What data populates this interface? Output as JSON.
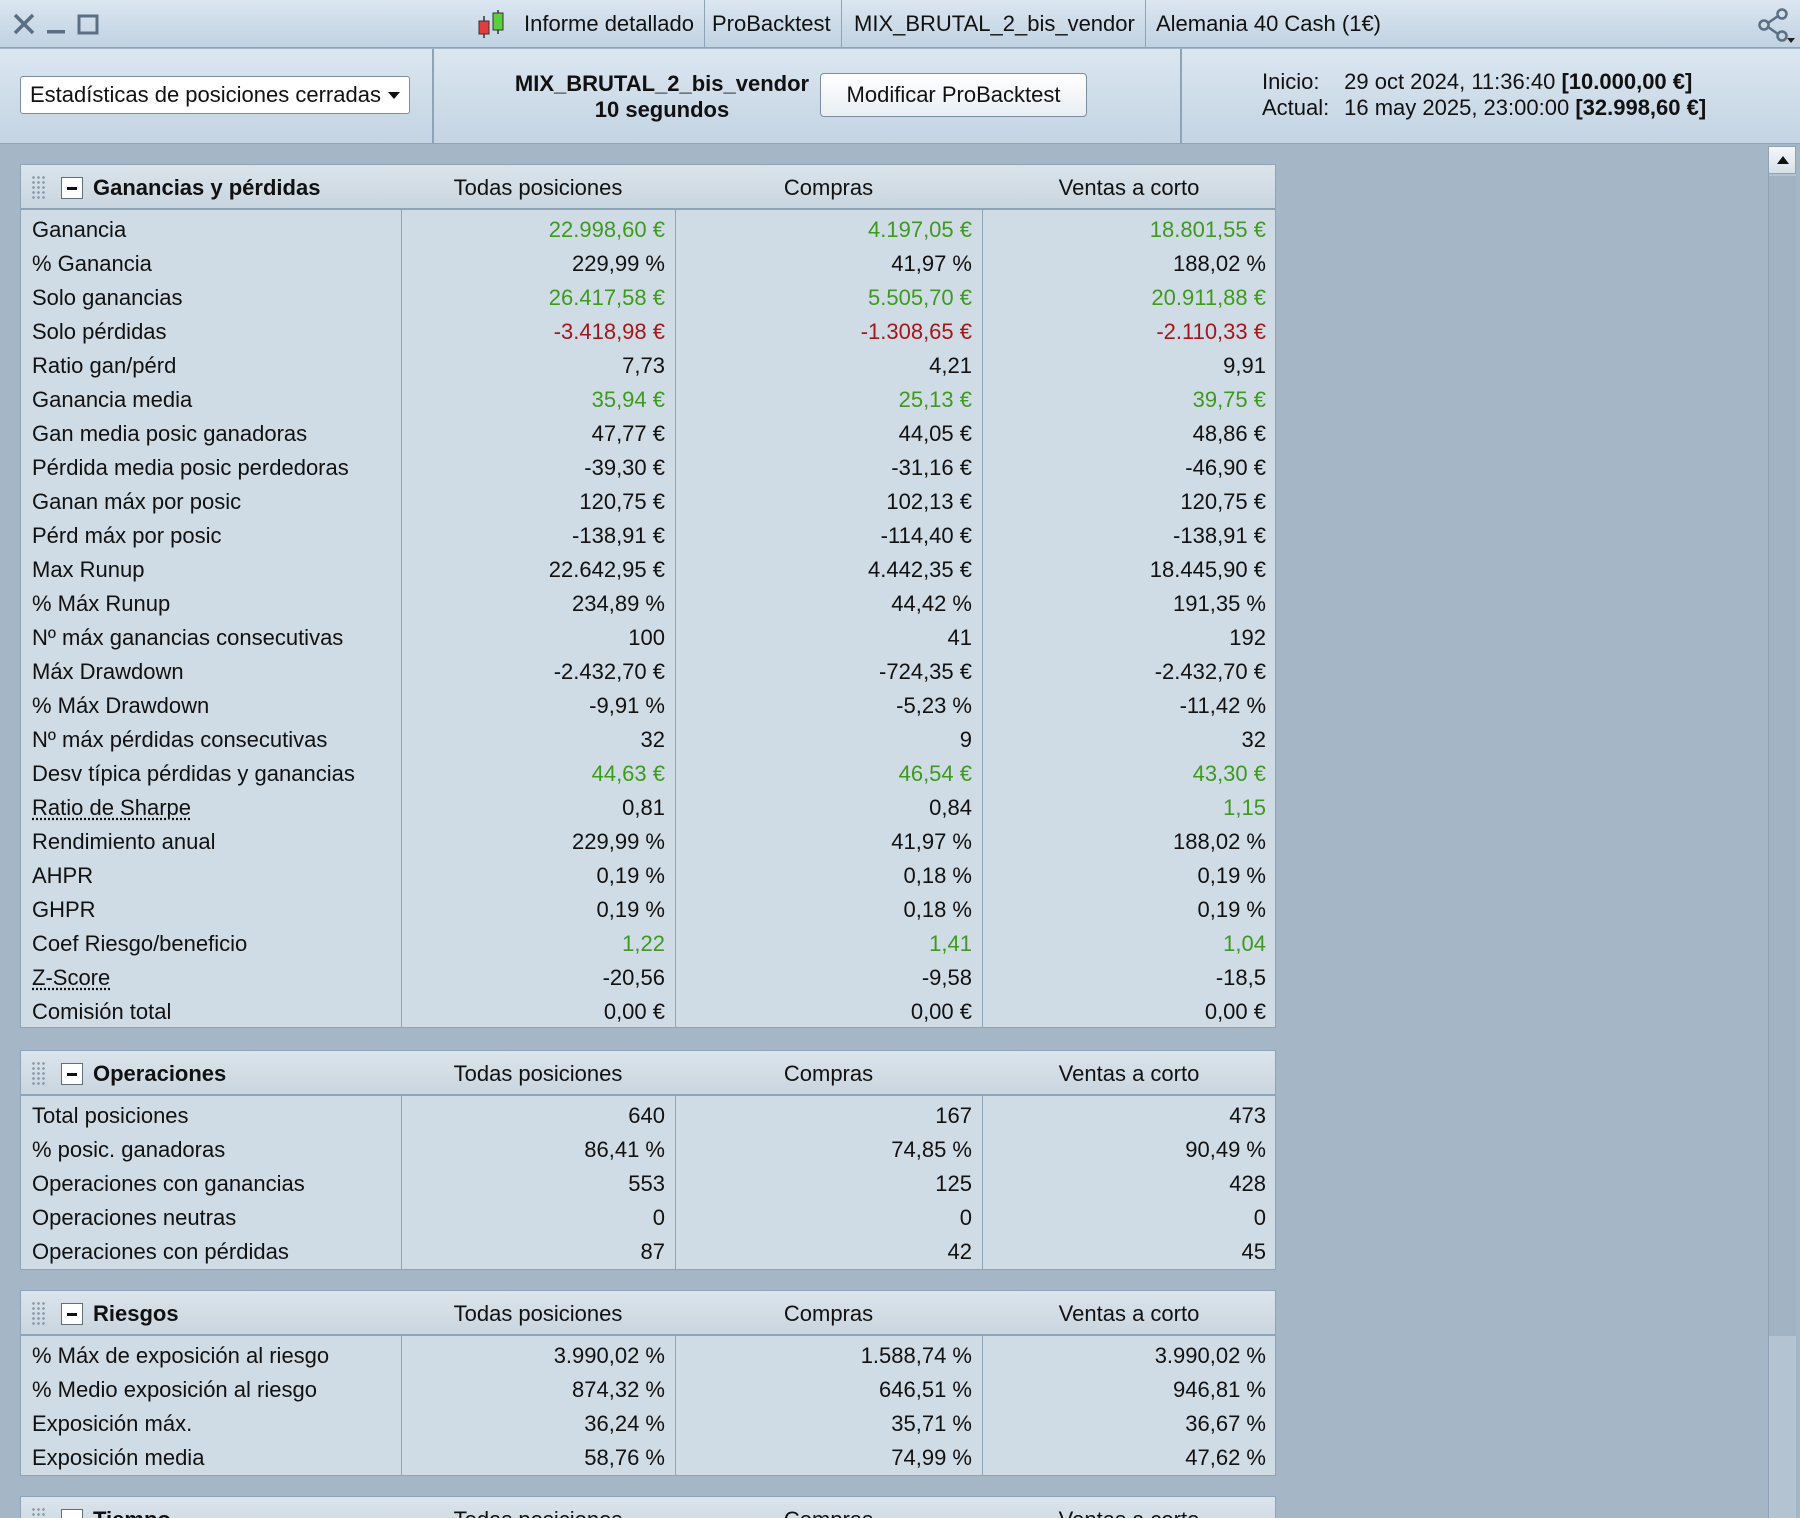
{
  "titlebar": {
    "tabs": [
      "Informe detallado",
      "ProBacktest",
      "MIX_BRUTAL_2_bis_vendor",
      "Alemania 40 Cash (1€)"
    ]
  },
  "header": {
    "stats_select": "Estadísticas de posiciones cerradas",
    "strategy_name": "MIX_BRUTAL_2_bis_vendor",
    "interval": "10 segundos",
    "modify_button": "Modificar ProBacktest",
    "start_label": "Inicio:",
    "start_value": "29 oct 2024, 11:36:40",
    "start_capital": "[10.000,00 €]",
    "current_label": "Actual:",
    "current_value": "16 may 2025, 23:00:00",
    "current_capital": "[32.998,60 €]"
  },
  "columns": [
    "Todas posiciones",
    "Compras",
    "Ventas a corto"
  ],
  "colors": {
    "positive": "#3e9a1f",
    "negative": "#a4161a"
  },
  "sections": {
    "pnl": {
      "title": "Ganancias y pérdidas",
      "rows": [
        {
          "label": "Ganancia",
          "values": [
            "22.998,60 €",
            "4.197,05 €",
            "18.801,55 €"
          ],
          "color": "green"
        },
        {
          "label": "% Ganancia",
          "values": [
            "229,99 %",
            "41,97 %",
            "188,02 %"
          ]
        },
        {
          "label": "Solo ganancias",
          "values": [
            "26.417,58 €",
            "5.505,70 €",
            "20.911,88 €"
          ],
          "color": "green"
        },
        {
          "label": "Solo pérdidas",
          "values": [
            "-3.418,98 €",
            "-1.308,65 €",
            "-2.110,33 €"
          ],
          "color": "red"
        },
        {
          "label": "Ratio gan/pérd",
          "values": [
            "7,73",
            "4,21",
            "9,91"
          ]
        },
        {
          "label": "Ganancia media",
          "values": [
            "35,94 €",
            "25,13 €",
            "39,75 €"
          ],
          "color": "green"
        },
        {
          "label": "Gan media posic ganadoras",
          "values": [
            "47,77 €",
            "44,05 €",
            "48,86 €"
          ]
        },
        {
          "label": "Pérdida media posic perdedoras",
          "values": [
            "-39,30 €",
            "-31,16 €",
            "-46,90 €"
          ]
        },
        {
          "label": "Ganan máx por posic",
          "values": [
            "120,75 €",
            "102,13 €",
            "120,75 €"
          ]
        },
        {
          "label": "Pérd máx por posic",
          "values": [
            "-138,91 €",
            "-114,40 €",
            "-138,91 €"
          ]
        },
        {
          "label": "Max Runup",
          "values": [
            "22.642,95 €",
            "4.442,35 €",
            "18.445,90 €"
          ]
        },
        {
          "label": "% Máx Runup",
          "values": [
            "234,89 %",
            "44,42 %",
            "191,35 %"
          ]
        },
        {
          "label": "Nº máx ganancias consecutivas",
          "values": [
            "100",
            "41",
            "192"
          ]
        },
        {
          "label": "Máx Drawdown",
          "values": [
            "-2.432,70 €",
            "-724,35 €",
            "-2.432,70 €"
          ]
        },
        {
          "label": "% Máx Drawdown",
          "values": [
            "-9,91 %",
            "-5,23 %",
            "-11,42 %"
          ]
        },
        {
          "label": "Nº máx pérdidas consecutivas",
          "values": [
            "32",
            "9",
            "32"
          ]
        },
        {
          "label": "Desv típica pérdidas y ganancias",
          "values": [
            "44,63 €",
            "46,54 €",
            "43,30 €"
          ],
          "color": "green"
        },
        {
          "label": "Ratio de Sharpe",
          "values": [
            "0,81",
            "0,84",
            "1,15"
          ],
          "link": true,
          "colors": [
            "",
            "",
            "green"
          ]
        },
        {
          "label": "Rendimiento anual",
          "values": [
            "229,99 %",
            "41,97 %",
            "188,02 %"
          ]
        },
        {
          "label": "AHPR",
          "values": [
            "0,19 %",
            "0,18 %",
            "0,19 %"
          ]
        },
        {
          "label": "GHPR",
          "values": [
            "0,19 %",
            "0,18 %",
            "0,19 %"
          ]
        },
        {
          "label": "Coef Riesgo/beneficio",
          "values": [
            "1,22",
            "1,41",
            "1,04"
          ],
          "color": "green"
        },
        {
          "label": "Z-Score",
          "values": [
            "-20,56",
            "-9,58",
            "-18,5"
          ],
          "link": true
        },
        {
          "label": "Comisión total",
          "values": [
            "0,00 €",
            "0,00 €",
            "0,00 €"
          ]
        }
      ]
    },
    "ops": {
      "title": "Operaciones",
      "rows": [
        {
          "label": "Total posiciones",
          "values": [
            "640",
            "167",
            "473"
          ]
        },
        {
          "label": "% posic. ganadoras",
          "values": [
            "86,41 %",
            "74,85 %",
            "90,49 %"
          ]
        },
        {
          "label": "Operaciones con ganancias",
          "values": [
            "553",
            "125",
            "428"
          ]
        },
        {
          "label": "Operaciones neutras",
          "values": [
            "0",
            "0",
            "0"
          ]
        },
        {
          "label": "Operaciones con pérdidas",
          "values": [
            "87",
            "42",
            "45"
          ]
        }
      ]
    },
    "risk": {
      "title": "Riesgos",
      "rows": [
        {
          "label": "% Máx de exposición al riesgo",
          "values": [
            "3.990,02 %",
            "1.588,74 %",
            "3.990,02 %"
          ]
        },
        {
          "label": "% Medio exposición al riesgo",
          "values": [
            "874,32 %",
            "646,51 %",
            "946,81 %"
          ]
        },
        {
          "label": "Exposición máx.",
          "values": [
            "36,24 %",
            "35,71 %",
            "36,67 %"
          ]
        },
        {
          "label": "Exposición media",
          "values": [
            "58,76 %",
            "74,99 %",
            "47,62 %"
          ]
        }
      ]
    },
    "time": {
      "title": "Tiempo",
      "rows": []
    }
  }
}
